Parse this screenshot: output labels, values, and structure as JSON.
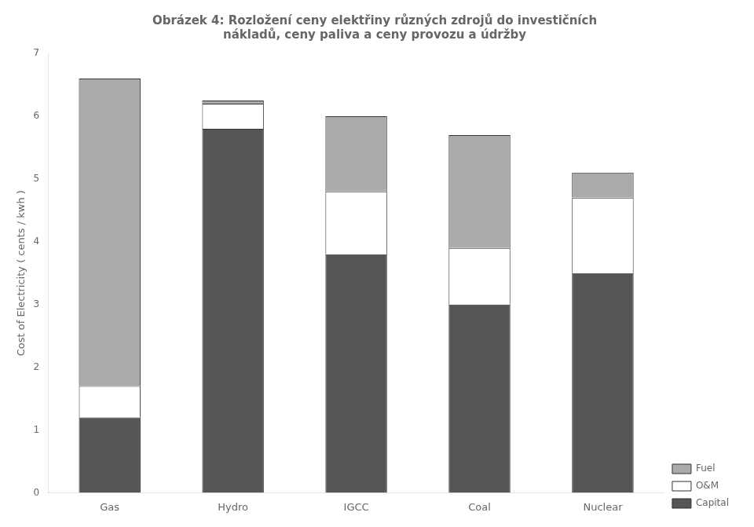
{
  "chart_data": {
    "type": "bar",
    "stacked": true,
    "title": "Obrázek 4: Rozložení ceny elektřiny různých zdrojů do investičních\nnákladů, ceny paliva a ceny provozu a údržby",
    "categories": [
      "Gas",
      "Hydro",
      "IGCC",
      "Coal",
      "Nuclear"
    ],
    "series": [
      {
        "name": "Capital",
        "color": "#555555",
        "values": [
          1.2,
          5.8,
          3.8,
          3.0,
          3.5
        ]
      },
      {
        "name": "O&M",
        "color": "#ffffff",
        "values": [
          0.5,
          0.4,
          1.0,
          0.9,
          1.2
        ]
      },
      {
        "name": "Fuel",
        "color": "#aaaaaa",
        "values": [
          4.9,
          0.05,
          1.2,
          1.8,
          0.4
        ]
      }
    ],
    "ylabel": "Cost of Electricity ( cents / kwh )",
    "ylim": [
      0,
      7
    ],
    "yticks": [
      0,
      1,
      2,
      3,
      4,
      5,
      6,
      7
    ],
    "grid": false,
    "legend": "lower right"
  }
}
